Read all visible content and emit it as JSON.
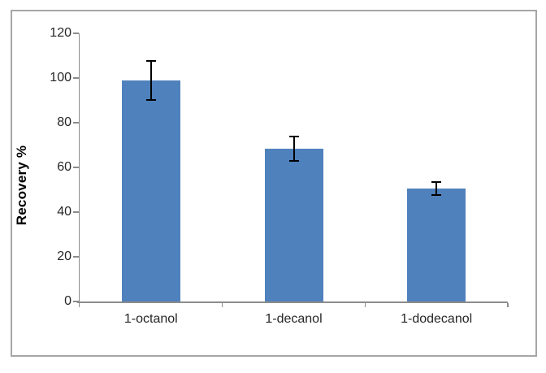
{
  "chart_data": {
    "type": "bar",
    "title": "",
    "xlabel": "",
    "ylabel": "Recovery %",
    "categories": [
      "1-octanol",
      "1-decanol",
      "1-dodecanol"
    ],
    "values": [
      99,
      68.5,
      50.5
    ],
    "errors": [
      9,
      5.8,
      3.3
    ],
    "ylim": [
      0,
      120
    ],
    "yticks": [
      0,
      20,
      40,
      60,
      80,
      100,
      120
    ],
    "grid": false,
    "legend_position": "none",
    "bar_color": "#4F81BD",
    "error_bar_color": "#000000",
    "axis_color": "#8C8C8C",
    "tick_label_color": "#262626",
    "category_label_color": "#262626",
    "frame_border_color": "#A6A6A6"
  }
}
